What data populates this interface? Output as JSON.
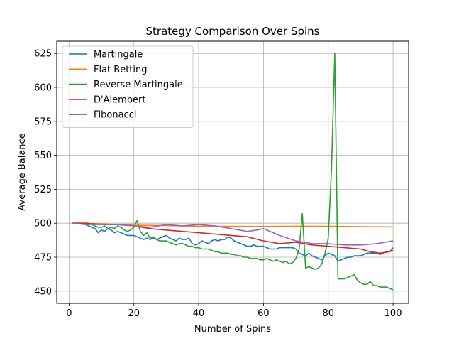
{
  "chart_data": {
    "type": "line",
    "title": "Strategy Comparison Over Spins",
    "xlabel": "Number of Spins",
    "ylabel": "Average Balance",
    "xlim": [
      -3.8,
      104.8
    ],
    "ylim": [
      441,
      634
    ],
    "xticks": [
      0,
      20,
      40,
      60,
      80,
      100
    ],
    "yticks": [
      450,
      475,
      500,
      525,
      550,
      575,
      600,
      625
    ],
    "grid": true,
    "legend_position": "top-left",
    "series": [
      {
        "name": "Martingale",
        "color": "#1f77b4",
        "x": [
          1,
          2,
          3,
          4,
          5,
          6,
          7,
          8,
          9,
          10,
          11,
          12,
          13,
          14,
          15,
          16,
          17,
          18,
          19,
          20,
          21,
          22,
          23,
          24,
          25,
          26,
          27,
          28,
          29,
          30,
          31,
          32,
          33,
          34,
          35,
          36,
          37,
          38,
          39,
          40,
          41,
          42,
          43,
          44,
          45,
          46,
          47,
          48,
          49,
          50,
          51,
          52,
          53,
          54,
          55,
          56,
          57,
          58,
          59,
          60,
          61,
          62,
          63,
          64,
          65,
          66,
          67,
          68,
          69,
          70,
          71,
          72,
          73,
          74,
          75,
          76,
          77,
          78,
          79,
          80,
          81,
          82,
          83,
          84,
          85,
          86,
          87,
          88,
          89,
          90,
          91,
          92,
          93,
          94,
          95,
          96,
          97,
          98,
          99,
          100
        ],
        "y": [
          500,
          500,
          500,
          500,
          499,
          498,
          497,
          496,
          493,
          495,
          494,
          496,
          495,
          493,
          494,
          493,
          492,
          491,
          491,
          491,
          490,
          489,
          488,
          489,
          488,
          489,
          488,
          489,
          490,
          491,
          489,
          488,
          487,
          489,
          488,
          488,
          489,
          485,
          484,
          485,
          487,
          486,
          485,
          487,
          488,
          487,
          488,
          488,
          490,
          489,
          487,
          486,
          485,
          484,
          483,
          483,
          484,
          483,
          483,
          483,
          482,
          481,
          481,
          481,
          482,
          482,
          482,
          482,
          482,
          481,
          478,
          477,
          476,
          478,
          476,
          475,
          474,
          473,
          476,
          478,
          477,
          476,
          472,
          473,
          474,
          475,
          475,
          476,
          476,
          476,
          477,
          478,
          478,
          478,
          478,
          477,
          478,
          479,
          479,
          480
        ]
      },
      {
        "name": "Flat Betting",
        "color": "#ff7f0e",
        "x": [
          1,
          10,
          20,
          30,
          40,
          50,
          60,
          70,
          80,
          90,
          100
        ],
        "y": [
          500,
          499.5,
          498.5,
          498.2,
          497.8,
          497.7,
          497.6,
          497.8,
          497.7,
          497.5,
          497.3
        ]
      },
      {
        "name": "Reverse Martingale",
        "color": "#2ca02c",
        "x": [
          1,
          2,
          3,
          4,
          5,
          6,
          7,
          8,
          9,
          10,
          11,
          12,
          13,
          14,
          15,
          16,
          17,
          18,
          19,
          20,
          21,
          22,
          23,
          24,
          25,
          26,
          27,
          28,
          29,
          30,
          31,
          32,
          33,
          34,
          35,
          36,
          37,
          38,
          39,
          40,
          41,
          42,
          43,
          44,
          45,
          46,
          47,
          48,
          49,
          50,
          51,
          52,
          53,
          54,
          55,
          56,
          57,
          58,
          59,
          60,
          61,
          62,
          63,
          64,
          65,
          66,
          67,
          68,
          69,
          70,
          71,
          72,
          73,
          74,
          75,
          76,
          77,
          78,
          79,
          80,
          81,
          82,
          83,
          84,
          85,
          86,
          87,
          88,
          89,
          90,
          91,
          92,
          93,
          94,
          95,
          96,
          97,
          98,
          99,
          100
        ],
        "y": [
          500,
          500,
          500,
          500,
          500,
          500,
          499,
          498,
          497,
          497,
          498,
          496,
          497,
          496,
          498,
          497,
          495,
          494,
          495,
          497,
          502,
          494,
          491,
          493,
          489,
          490,
          488,
          487,
          487,
          487,
          486,
          485,
          484,
          485,
          485,
          484,
          483,
          483,
          482,
          482,
          481,
          481,
          481,
          480,
          479,
          479,
          478,
          478,
          478,
          477,
          477,
          476,
          476,
          475,
          475,
          474,
          474,
          474,
          473,
          473,
          474,
          473,
          472,
          473,
          472,
          471,
          472,
          470,
          471,
          474,
          481,
          507,
          467,
          468,
          467,
          466,
          467,
          470,
          478,
          489,
          540,
          625,
          459,
          459,
          459,
          460,
          461,
          462,
          458,
          456,
          455,
          455,
          457,
          454,
          454,
          453,
          453,
          453,
          452,
          451
        ]
      },
      {
        "name": "D'Alembert",
        "color": "#d62728",
        "x": [
          1,
          5,
          10,
          15,
          20,
          25,
          30,
          35,
          40,
          45,
          50,
          55,
          60,
          65,
          70,
          75,
          80,
          85,
          90,
          93,
          96,
          99,
          100
        ],
        "y": [
          500,
          500,
          499,
          499,
          498,
          496,
          495,
          494,
          493,
          492,
          491,
          490,
          487,
          485,
          486,
          484,
          483,
          482,
          481,
          479,
          478,
          479,
          482
        ]
      },
      {
        "name": "Fibonacci",
        "color": "#9467bd",
        "x": [
          1,
          5,
          10,
          15,
          20,
          25,
          30,
          35,
          40,
          45,
          50,
          55,
          58,
          60,
          65,
          70,
          75,
          80,
          85,
          90,
          95,
          100
        ],
        "y": [
          500,
          499,
          499,
          499,
          498,
          497,
          499,
          498,
          499,
          498,
          496,
          494,
          495,
          496,
          491,
          487,
          485,
          485,
          484,
          484,
          485,
          487
        ]
      }
    ]
  }
}
